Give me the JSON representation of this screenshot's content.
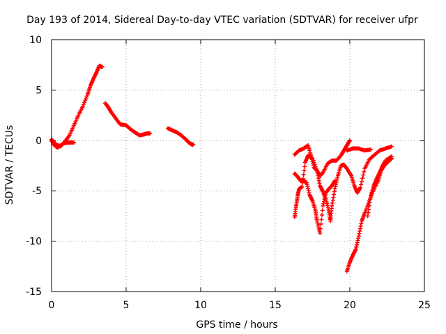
{
  "chart_data": {
    "type": "scatter",
    "title": "Day 193 of 2014, Sidereal Day-to-day VTEC variation (SDTVAR) for receiver ufpr",
    "xlabel": "GPS time / hours",
    "ylabel": "SDTVAR / TECUs",
    "xlim": [
      0,
      25
    ],
    "ylim": [
      -15,
      10
    ],
    "x_ticks": [
      0,
      5,
      10,
      15,
      20,
      25
    ],
    "y_ticks": [
      -15,
      -10,
      -5,
      0,
      5,
      10
    ],
    "x_tick_labels": [
      "0",
      "5",
      "10",
      "15",
      "20",
      "25"
    ],
    "y_tick_labels": [
      "-15",
      "-10",
      "-5",
      "0",
      "5",
      "10"
    ],
    "grid": true,
    "legend": "none",
    "marker": "plus",
    "series_color": "#ff0000",
    "series": [
      {
        "points": [
          [
            0.0,
            0.0
          ],
          [
            0.2,
            -0.5
          ],
          [
            0.4,
            -0.7
          ],
          [
            0.6,
            -0.5
          ],
          [
            0.8,
            -0.3
          ],
          [
            1.0,
            -0.2
          ],
          [
            1.2,
            -0.2
          ],
          [
            1.5,
            -0.2
          ]
        ]
      },
      {
        "points": [
          [
            0.0,
            0.1
          ],
          [
            0.3,
            -0.4
          ],
          [
            0.6,
            -0.6
          ],
          [
            0.9,
            -0.1
          ],
          [
            1.2,
            0.5
          ],
          [
            1.5,
            1.5
          ],
          [
            1.8,
            2.5
          ],
          [
            2.1,
            3.4
          ],
          [
            2.4,
            4.5
          ],
          [
            2.6,
            5.4
          ],
          [
            2.8,
            6.1
          ],
          [
            3.0,
            6.7
          ],
          [
            3.2,
            7.4
          ],
          [
            3.4,
            7.3
          ]
        ]
      },
      {
        "points": [
          [
            3.6,
            3.7
          ],
          [
            3.8,
            3.3
          ],
          [
            4.0,
            2.8
          ],
          [
            4.3,
            2.2
          ],
          [
            4.6,
            1.6
          ],
          [
            5.0,
            1.5
          ],
          [
            5.3,
            1.1
          ],
          [
            5.6,
            0.8
          ],
          [
            5.9,
            0.5
          ],
          [
            6.2,
            0.6
          ],
          [
            6.4,
            0.7
          ],
          [
            6.6,
            0.7
          ]
        ]
      },
      {
        "points": [
          [
            7.8,
            1.2
          ],
          [
            8.1,
            1.0
          ],
          [
            8.4,
            0.8
          ],
          [
            8.7,
            0.5
          ],
          [
            9.0,
            0.1
          ],
          [
            9.2,
            -0.2
          ],
          [
            9.4,
            -0.4
          ],
          [
            9.5,
            -0.4
          ]
        ]
      },
      {
        "points": [
          [
            16.3,
            -1.4
          ],
          [
            16.6,
            -1.0
          ],
          [
            16.9,
            -0.8
          ],
          [
            17.2,
            -0.5
          ],
          [
            17.4,
            -1.5
          ],
          [
            17.6,
            -2.7
          ],
          [
            17.8,
            -3.0
          ],
          [
            18.0,
            -3.5
          ],
          [
            18.2,
            -3.2
          ],
          [
            18.5,
            -2.3
          ],
          [
            18.8,
            -2.0
          ],
          [
            19.1,
            -2.0
          ],
          [
            19.4,
            -1.5
          ],
          [
            19.6,
            -1.0
          ],
          [
            19.8,
            -0.5
          ],
          [
            20.0,
            0.0
          ]
        ]
      },
      {
        "points": [
          [
            16.3,
            -3.3
          ],
          [
            16.5,
            -3.6
          ],
          [
            16.7,
            -4.0
          ],
          [
            16.9,
            -4.0
          ],
          [
            17.1,
            -4.2
          ],
          [
            17.3,
            -5.4
          ],
          [
            17.5,
            -6.0
          ],
          [
            17.7,
            -7.0
          ],
          [
            17.8,
            -8.0
          ],
          [
            18.0,
            -9.2
          ],
          [
            18.2,
            -6.5
          ],
          [
            18.4,
            -5.2
          ],
          [
            18.6,
            -4.8
          ],
          [
            18.8,
            -4.5
          ],
          [
            19.0,
            -4.0
          ]
        ]
      },
      {
        "points": [
          [
            16.3,
            -7.6
          ],
          [
            16.4,
            -6.5
          ],
          [
            16.5,
            -5.5
          ],
          [
            16.6,
            -4.8
          ],
          [
            16.8,
            -4.6
          ],
          [
            17.0,
            -2.2
          ],
          [
            17.2,
            -1.5
          ],
          [
            17.5,
            -1.8
          ],
          [
            17.8,
            -3.0
          ],
          [
            18.0,
            -4.5
          ],
          [
            18.2,
            -5.1
          ],
          [
            18.4,
            -5.9
          ],
          [
            18.6,
            -7.0
          ],
          [
            18.7,
            -8.0
          ],
          [
            18.8,
            -6.5
          ],
          [
            19.0,
            -4.8
          ],
          [
            19.2,
            -3.5
          ],
          [
            19.4,
            -2.5
          ],
          [
            19.6,
            -2.4
          ],
          [
            19.8,
            -2.8
          ],
          [
            20.1,
            -3.5
          ],
          [
            20.3,
            -4.5
          ],
          [
            20.5,
            -5.2
          ],
          [
            20.7,
            -4.7
          ],
          [
            21.0,
            -2.8
          ],
          [
            21.3,
            -1.9
          ],
          [
            21.6,
            -1.5
          ],
          [
            22.0,
            -1.0
          ],
          [
            22.4,
            -0.8
          ],
          [
            22.8,
            -0.6
          ]
        ]
      },
      {
        "points": [
          [
            19.8,
            -13.0
          ],
          [
            20.0,
            -12.1
          ],
          [
            20.2,
            -11.4
          ],
          [
            20.4,
            -10.8
          ],
          [
            20.6,
            -9.5
          ],
          [
            20.8,
            -8.0
          ],
          [
            21.0,
            -7.2
          ],
          [
            21.3,
            -6.0
          ],
          [
            21.6,
            -4.9
          ],
          [
            21.9,
            -4.0
          ],
          [
            22.1,
            -3.0
          ],
          [
            22.3,
            -2.5
          ],
          [
            22.5,
            -2.2
          ],
          [
            22.8,
            -1.8
          ]
        ]
      },
      {
        "points": [
          [
            21.2,
            -7.5
          ],
          [
            21.4,
            -5.5
          ],
          [
            21.6,
            -4.5
          ],
          [
            21.8,
            -3.8
          ],
          [
            22.0,
            -3.2
          ],
          [
            22.2,
            -2.5
          ],
          [
            22.4,
            -2.0
          ],
          [
            22.6,
            -1.8
          ],
          [
            22.8,
            -1.6
          ]
        ]
      },
      {
        "points": [
          [
            19.8,
            -1.0
          ],
          [
            20.2,
            -0.8
          ],
          [
            20.6,
            -0.8
          ],
          [
            21.0,
            -1.0
          ],
          [
            21.4,
            -0.9
          ]
        ]
      }
    ]
  }
}
